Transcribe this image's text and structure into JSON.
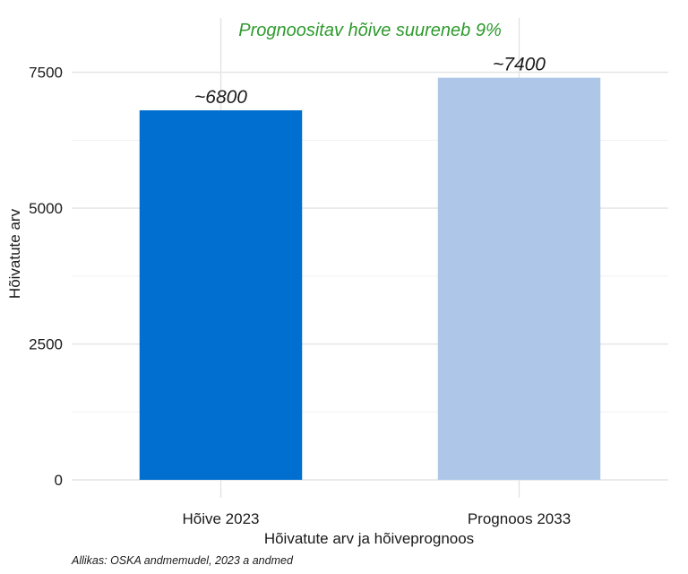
{
  "chart_data": {
    "type": "bar",
    "categories": [
      "Hõive 2023",
      "Prognoos 2033"
    ],
    "values": [
      6800,
      7400
    ],
    "data_labels": [
      "~6800",
      "~7400"
    ],
    "bar_colors": [
      "#006fcf",
      "#aec7e8"
    ],
    "annotation": "Prognoositav hõive suureneb 9%",
    "annotation_color": "#2e9a2e",
    "xlabel": "Hõivatute arv ja hõiveprognoos",
    "ylabel": "Hõivatute arv",
    "ylim": [
      0,
      8500
    ],
    "yticks": [
      0,
      2500,
      5000,
      7500
    ],
    "grid": true,
    "caption": "Allikas: OSKA andmemudel, 2023 a andmed"
  }
}
